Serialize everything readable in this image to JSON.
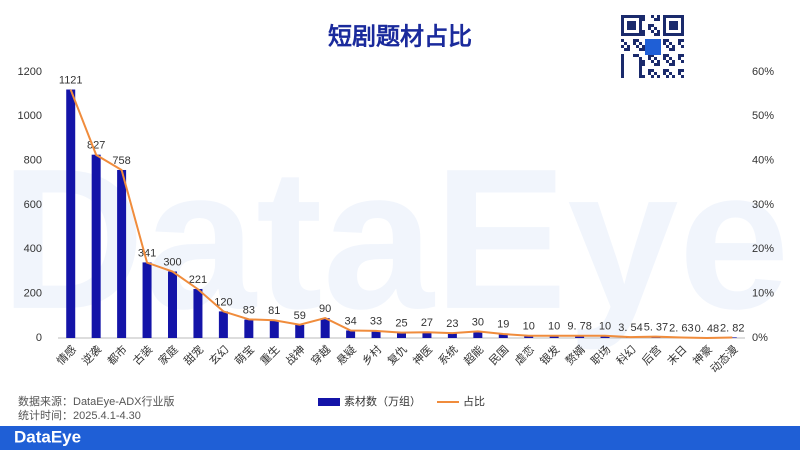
{
  "chart_data": {
    "type": "combo",
    "title": "短剧题材占比",
    "categories": [
      "情感",
      "逆袭",
      "都市",
      "古装",
      "家庭",
      "甜宠",
      "玄幻",
      "萌宝",
      "重生",
      "战神",
      "穿越",
      "悬疑",
      "乡村",
      "复仇",
      "神医",
      "系统",
      "超能",
      "民国",
      "虐恋",
      "银发",
      "赘婿",
      "职场",
      "科幻",
      "后宫",
      "末日",
      "神豪",
      "动态漫"
    ],
    "series": [
      {
        "name": "素材数（万组）",
        "type": "bar",
        "color": "#1414a8",
        "values": [
          1121,
          827,
          758,
          341,
          300,
          221,
          120,
          83,
          81,
          59,
          90,
          34,
          33,
          25,
          27,
          23,
          30,
          19,
          10,
          10,
          9.78,
          10,
          3.54,
          5.37,
          2.63,
          0.48,
          2.82
        ],
        "value_labels": [
          "1121",
          "827",
          "758",
          "341",
          "300",
          "221",
          "120",
          "83",
          "81",
          "59",
          "90",
          "34",
          "33",
          "25",
          "27",
          "23",
          "30",
          "19",
          "10",
          "10",
          "9. 78",
          "10",
          "3. 54",
          "5. 37",
          "2. 63",
          "0. 48",
          "2. 82"
        ]
      },
      {
        "name": "占比",
        "type": "line",
        "axis": "y2",
        "color": "#f08c3c",
        "values": [
          56,
          41.3,
          37.9,
          17,
          15,
          11,
          6,
          4.2,
          4,
          3,
          4.5,
          1.7,
          1.6,
          1.2,
          1.3,
          1.1,
          1.5,
          0.9,
          0.5,
          0.5,
          0.5,
          0.5,
          0.2,
          0.3,
          0.1,
          0,
          0.1
        ]
      }
    ],
    "ylim": [
      0,
      1200
    ],
    "yticks": [
      0,
      200,
      400,
      600,
      800,
      1000,
      1200
    ],
    "y2lim": [
      0,
      60
    ],
    "y2ticks": [
      {
        "value": 0,
        "label": "0%"
      },
      {
        "value": 10,
        "label": "10%"
      },
      {
        "value": 20,
        "label": "20%"
      },
      {
        "value": 30,
        "label": "30%"
      },
      {
        "value": 40,
        "label": "40%"
      },
      {
        "value": 50,
        "label": "50%"
      },
      {
        "value": 60,
        "label": "60%"
      }
    ],
    "legend": "bottom"
  },
  "watermark": "DataEye",
  "footer": {
    "source": "数据来源：DataEye-ADX行业版",
    "period": "统计时间：2025.4.1-4.30",
    "logo": "DataEye"
  }
}
